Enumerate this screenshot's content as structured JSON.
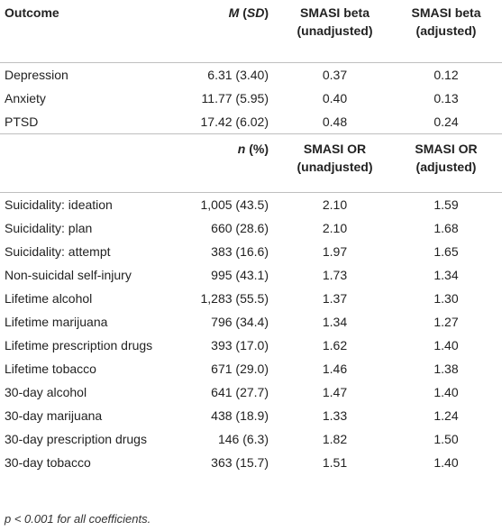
{
  "section1": {
    "headers": {
      "outcome": "Outcome",
      "m": "M",
      "sd": "SD",
      "beta_unadj_line1": "SMASI beta",
      "beta_unadj_line2": "(unadjusted)",
      "beta_adj_line1": "SMASI beta",
      "beta_adj_line2": "(adjusted)"
    },
    "rows": [
      {
        "outcome": "Depression",
        "msd": "6.31 (3.40)",
        "unadj": "0.37",
        "adj": "0.12"
      },
      {
        "outcome": "Anxiety",
        "msd": "11.77 (5.95)",
        "unadj": "0.40",
        "adj": "0.13"
      },
      {
        "outcome": "PTSD",
        "msd": "17.42 (6.02)",
        "unadj": "0.48",
        "adj": "0.24"
      }
    ]
  },
  "section2": {
    "headers": {
      "n": "n",
      "pct": "(%)",
      "or_unadj_line1": "SMASI OR",
      "or_unadj_line2": "(unadjusted)",
      "or_adj_line1": "SMASI OR",
      "or_adj_line2": "(adjusted)"
    },
    "rows": [
      {
        "outcome": "Suicidality: ideation",
        "npct": "1,005 (43.5)",
        "unadj": "2.10",
        "adj": "1.59"
      },
      {
        "outcome": "Suicidality: plan",
        "npct": "660 (28.6)",
        "unadj": "2.10",
        "adj": "1.68"
      },
      {
        "outcome": "Suicidality: attempt",
        "npct": "383 (16.6)",
        "unadj": "1.97",
        "adj": "1.65"
      },
      {
        "outcome": "Non-suicidal self-injury",
        "npct": "995 (43.1)",
        "unadj": "1.73",
        "adj": "1.34"
      },
      {
        "outcome": "Lifetime alcohol",
        "npct": "1,283 (55.5)",
        "unadj": "1.37",
        "adj": "1.30"
      },
      {
        "outcome": "Lifetime marijuana",
        "npct": "796 (34.4)",
        "unadj": "1.34",
        "adj": "1.27"
      },
      {
        "outcome": "Lifetime prescription drugs",
        "npct": "393 (17.0)",
        "unadj": "1.62",
        "adj": "1.40"
      },
      {
        "outcome": "Lifetime tobacco",
        "npct": "671 (29.0)",
        "unadj": "1.46",
        "adj": "1.38"
      },
      {
        "outcome": "30-day alcohol",
        "npct": "641 (27.7)",
        "unadj": "1.47",
        "adj": "1.40"
      },
      {
        "outcome": "30-day marijuana",
        "npct": "438 (18.9)",
        "unadj": "1.33",
        "adj": "1.24"
      },
      {
        "outcome": "30-day prescription drugs",
        "npct": "146 (6.3)",
        "unadj": "1.82",
        "adj": "1.50"
      },
      {
        "outcome": "30-day tobacco",
        "npct": "363 (15.7)",
        "unadj": "1.51",
        "adj": "1.40"
      }
    ]
  },
  "footnote": "p < 0.001 for all coefficients."
}
